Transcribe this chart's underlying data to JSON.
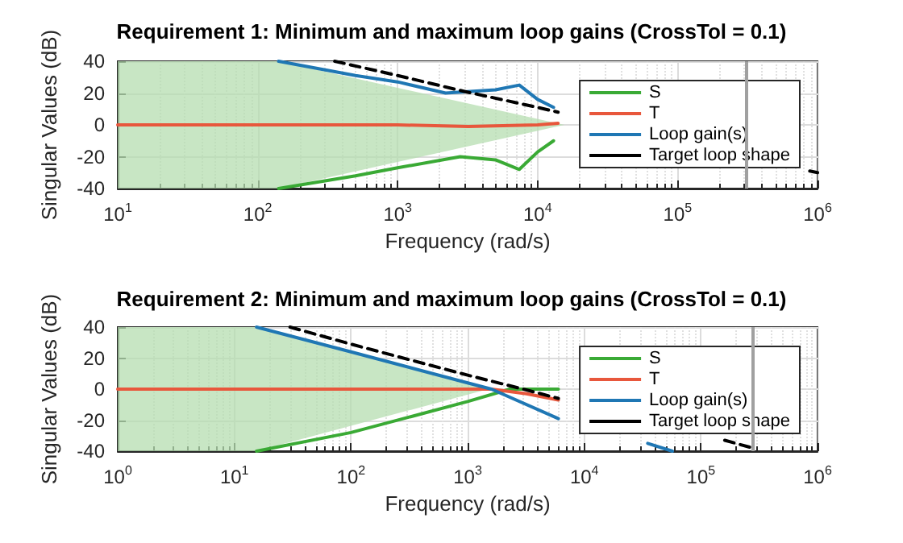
{
  "chart_data": [
    {
      "type": "line",
      "title": "Requirement 1: Minimum and maximum loop gains (CrossTol = 0.1)",
      "xlabel": "Frequency (rad/s)",
      "ylabel": "Singular Values (dB)",
      "log": "x",
      "grid": true,
      "legend": "right",
      "marker": "none",
      "xlim": [
        10,
        1000000
      ],
      "xticks": [
        {
          "value": 10,
          "label": "10$^{1}$"
        },
        {
          "value": 100,
          "label": "10$^{2}$"
        },
        {
          "value": 1000,
          "label": "10$^{3}$"
        },
        {
          "value": 10000,
          "label": "10$^{4}$"
        },
        {
          "value": 100000,
          "label": "10$^{5}$"
        },
        {
          "value": 1000000,
          "label": "10$^{6}$"
        }
      ],
      "ylim": [
        -40,
        40
      ],
      "yticks": [
        -40,
        -20,
        0,
        20,
        40
      ],
      "ref_lines": [
        {
          "axis": "x",
          "value": 310000,
          "color": "#a0a0a0"
        }
      ],
      "series": [
        {
          "type": "area",
          "color": "#b5ddb0",
          "x": [
            10,
            141,
            15500
          ],
          "values": [
            null,
            null,
            null
          ],
          "lower": [
            -40,
            -40,
            0
          ],
          "upper": [
            40,
            40,
            0
          ]
        },
        {
          "name": "S",
          "color": "#3aaa35",
          "x": [
            141,
            500,
            1000,
            2800,
            5000,
            7400,
            10000,
            13000
          ],
          "values": [
            -40,
            -32,
            -27,
            -20,
            -22,
            -28,
            -17,
            -10
          ]
        },
        {
          "name": "T",
          "color": "#e8573c",
          "x": [
            10,
            1000,
            3200,
            10000,
            14000
          ],
          "values": [
            0,
            0,
            -1,
            0,
            1
          ]
        },
        {
          "name": "Loop gain(s)",
          "color": "#1f77b4",
          "x": [
            141,
            500,
            1000,
            2200,
            5000,
            7400,
            10000,
            13000
          ],
          "values": [
            40,
            31,
            27,
            20,
            22,
            25,
            16,
            11
          ]
        },
        {
          "name": "Target loop shape",
          "color": "#000000",
          "line_style": "dashed",
          "x": [
            355,
            1000,
            3000,
            10000,
            14000,
            null,
            880000,
            1000000
          ],
          "values": [
            40,
            31,
            21,
            11,
            8,
            null,
            -29,
            -30
          ]
        }
      ]
    },
    {
      "type": "line",
      "title": "Requirement 2: Minimum and maximum loop gains (CrossTol = 0.1)",
      "xlabel": "Frequency (rad/s)",
      "ylabel": "Singular Values (dB)",
      "log": "x",
      "grid": true,
      "legend": "right",
      "marker": "none",
      "xlim": [
        1,
        1000000
      ],
      "xticks": [
        {
          "value": 1,
          "label": "10$^{0}$"
        },
        {
          "value": 10,
          "label": "10$^{1}$"
        },
        {
          "value": 100,
          "label": "10$^{2}$"
        },
        {
          "value": 1000,
          "label": "10$^{3}$"
        },
        {
          "value": 10000,
          "label": "10$^{4}$"
        },
        {
          "value": 100000,
          "label": "10$^{5}$"
        },
        {
          "value": 1000000,
          "label": "10$^{6}$"
        }
      ],
      "ylim": [
        -40,
        40
      ],
      "yticks": [
        -40,
        -20,
        0,
        20,
        40
      ],
      "ref_lines": [
        {
          "axis": "x",
          "value": 280000,
          "color": "#a0a0a0"
        }
      ],
      "series": [
        {
          "type": "area",
          "color": "#b5ddb0",
          "x": [
            1,
            15.5,
            1500
          ],
          "values": [
            null,
            null,
            null
          ],
          "lower": [
            -40,
            -40,
            0
          ],
          "upper": [
            40,
            40,
            0
          ]
        },
        {
          "name": "S",
          "color": "#3aaa35",
          "x": [
            15.5,
            100,
            1000,
            2300,
            6000
          ],
          "values": [
            -40,
            -28,
            -8,
            0,
            0
          ]
        },
        {
          "name": "T",
          "color": "#e8573c",
          "x": [
            1,
            1600,
            3200,
            6000
          ],
          "values": [
            0,
            0,
            -3,
            -7
          ]
        },
        {
          "name": "Loop gain(s)",
          "color": "#1f77b4",
          "x": [
            15.5,
            100,
            1000,
            1600,
            6000,
            null,
            35000,
            57000
          ],
          "values": [
            40,
            24,
            4,
            0,
            -19,
            null,
            -35,
            -40
          ]
        },
        {
          "name": "Target loop shape",
          "color": "#000000",
          "line_style": "dashed",
          "x": [
            30,
            100,
            1000,
            3000,
            6000,
            null,
            160000,
            280000
          ],
          "values": [
            40,
            29,
            9,
            0,
            -6,
            null,
            -33,
            -38
          ]
        }
      ]
    }
  ]
}
